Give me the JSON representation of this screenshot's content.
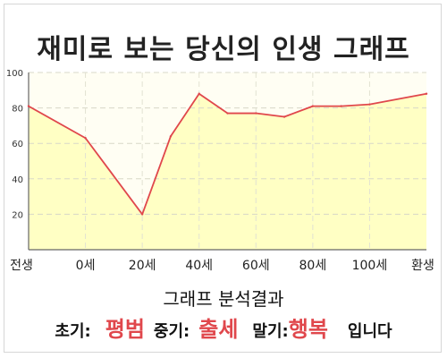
{
  "title": "재미로 보는 당신의 인생 그래프",
  "analysis_title": "그래프 분석결과",
  "summary": {
    "early_label": "초기:",
    "early_value": "평범",
    "mid_label": "중기:",
    "mid_value": "출세",
    "late_label": "말기:",
    "late_value": "행복",
    "suffix": "입니다"
  },
  "colors": {
    "line": "#e0474c",
    "fill": "#ffffc4",
    "highlight": "#e0474c"
  },
  "chart_data": {
    "type": "area",
    "title": "",
    "xlabel": "",
    "ylabel": "",
    "x_tick_labels": [
      "전생",
      "0세",
      "20세",
      "40세",
      "60세",
      "80세",
      "100세",
      "환생"
    ],
    "y_ticks": [
      20,
      40,
      60,
      80,
      100
    ],
    "ylim": [
      0,
      100
    ],
    "grid": true,
    "legend": "none",
    "series": [
      {
        "x": [
          "전생",
          "0세",
          "20세",
          "30세",
          "40세",
          "50세",
          "60세",
          "70세",
          "80세",
          "90세",
          "100세",
          "환생"
        ],
        "values": [
          81,
          63,
          20,
          64,
          88,
          77,
          77,
          75,
          81,
          81,
          82,
          88
        ]
      }
    ]
  }
}
